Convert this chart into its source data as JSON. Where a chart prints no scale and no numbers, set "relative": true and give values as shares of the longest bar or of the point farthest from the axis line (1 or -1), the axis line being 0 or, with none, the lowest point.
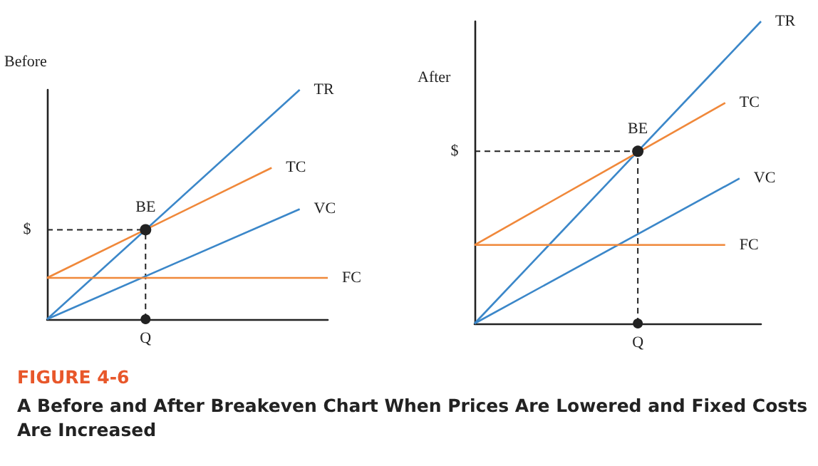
{
  "chart_data": [
    {
      "type": "line",
      "ylabel": "Before",
      "relative": true,
      "legend": false,
      "grid": false,
      "marker": "none",
      "categories": [
        null,
        null,
        null,
        null,
        null,
        null,
        null,
        null,
        null,
        null,
        null,
        null,
        null,
        null,
        null,
        null,
        null,
        null,
        null,
        null,
        null
      ],
      "series": [
        {
          "name": "TR",
          "color": "#3b87c9",
          "values": [
            0,
            null,
            null,
            null,
            null,
            null,
            null,
            null,
            null,
            null,
            null,
            null,
            null,
            null,
            null,
            null,
            null,
            null,
            1,
            null,
            null
          ]
        },
        {
          "name": "TC",
          "color": "#f0883a",
          "values": [
            0.18,
            null,
            null,
            null,
            null,
            null,
            null,
            null,
            null,
            null,
            null,
            null,
            null,
            null,
            null,
            null,
            0.66,
            null,
            null,
            null,
            null
          ]
        },
        {
          "name": "VC",
          "color": "#3b87c9",
          "values": [
            0,
            null,
            null,
            null,
            null,
            null,
            null,
            null,
            null,
            null,
            null,
            null,
            null,
            null,
            null,
            null,
            null,
            null,
            0.48,
            null,
            null
          ]
        },
        {
          "name": "FC",
          "color": "#f0883a",
          "values": [
            0.18,
            null,
            null,
            null,
            null,
            null,
            null,
            null,
            null,
            null,
            null,
            null,
            null,
            null,
            null,
            null,
            null,
            null,
            null,
            null,
            0.18
          ]
        }
      ],
      "ref_lines": [
        {
          "axis": "y",
          "value": 0.39,
          "label": "$",
          "line_style": "dashed"
        },
        {
          "axis": "x",
          "label": "Q",
          "line_style": "dashed"
        }
      ],
      "annotations": [
        {
          "text": "BE",
          "y": 0.39
        },
        "FIGURE 4-6",
        "A Before and After Breakeven Chart When Prices Are Lowered and Fixed Costs Are Increased"
      ]
    },
    {
      "type": "line",
      "ylabel": "After",
      "relative": true,
      "legend": false,
      "grid": false,
      "marker": "none",
      "categories": [
        null,
        null,
        null,
        null,
        null,
        null,
        null,
        null,
        null,
        null,
        null,
        null,
        null,
        null,
        null,
        null,
        null,
        null,
        null,
        null,
        null,
        null,
        null,
        null,
        null,
        null,
        null,
        null,
        null,
        null,
        null,
        null,
        null,
        null,
        null,
        null,
        null,
        null,
        null,
        null,
        null
      ],
      "series": [
        {
          "name": "TR",
          "color": "#3b87c9",
          "values": [
            0,
            null,
            null,
            null,
            null,
            null,
            null,
            null,
            null,
            null,
            null,
            null,
            null,
            null,
            null,
            null,
            null,
            null,
            null,
            null,
            null,
            null,
            null,
            null,
            null,
            null,
            null,
            null,
            null,
            null,
            null,
            null,
            null,
            null,
            null,
            null,
            null,
            null,
            null,
            null,
            1
          ]
        },
        {
          "name": "TC",
          "color": "#f0883a",
          "values": [
            0.26,
            null,
            null,
            null,
            null,
            null,
            null,
            null,
            null,
            null,
            null,
            null,
            null,
            null,
            null,
            null,
            null,
            null,
            null,
            null,
            null,
            null,
            null,
            null,
            null,
            null,
            null,
            null,
            null,
            null,
            null,
            null,
            null,
            null,
            null,
            0.73,
            null,
            null,
            null,
            null,
            null
          ]
        },
        {
          "name": "VC",
          "color": "#3b87c9",
          "values": [
            0,
            null,
            null,
            null,
            null,
            null,
            null,
            null,
            null,
            null,
            null,
            null,
            null,
            null,
            null,
            null,
            null,
            null,
            null,
            null,
            null,
            null,
            null,
            null,
            null,
            null,
            null,
            null,
            null,
            null,
            null,
            null,
            null,
            null,
            null,
            null,
            null,
            0.48,
            null,
            null,
            null
          ]
        },
        {
          "name": "FC",
          "color": "#f0883a",
          "values": [
            0.26,
            null,
            null,
            null,
            null,
            null,
            null,
            null,
            null,
            null,
            null,
            null,
            null,
            null,
            null,
            null,
            null,
            null,
            null,
            null,
            null,
            null,
            null,
            null,
            null,
            null,
            null,
            null,
            null,
            null,
            null,
            null,
            null,
            null,
            null,
            0.26,
            null,
            null,
            null,
            null,
            null
          ]
        }
      ],
      "ref_lines": [
        {
          "axis": "y",
          "value": 0.57,
          "label": "$",
          "line_style": "dashed"
        },
        {
          "axis": "x",
          "label": "Q",
          "line_style": "dashed"
        }
      ],
      "annotations": [
        {
          "text": "BE",
          "y": 0.57
        }
      ]
    }
  ]
}
